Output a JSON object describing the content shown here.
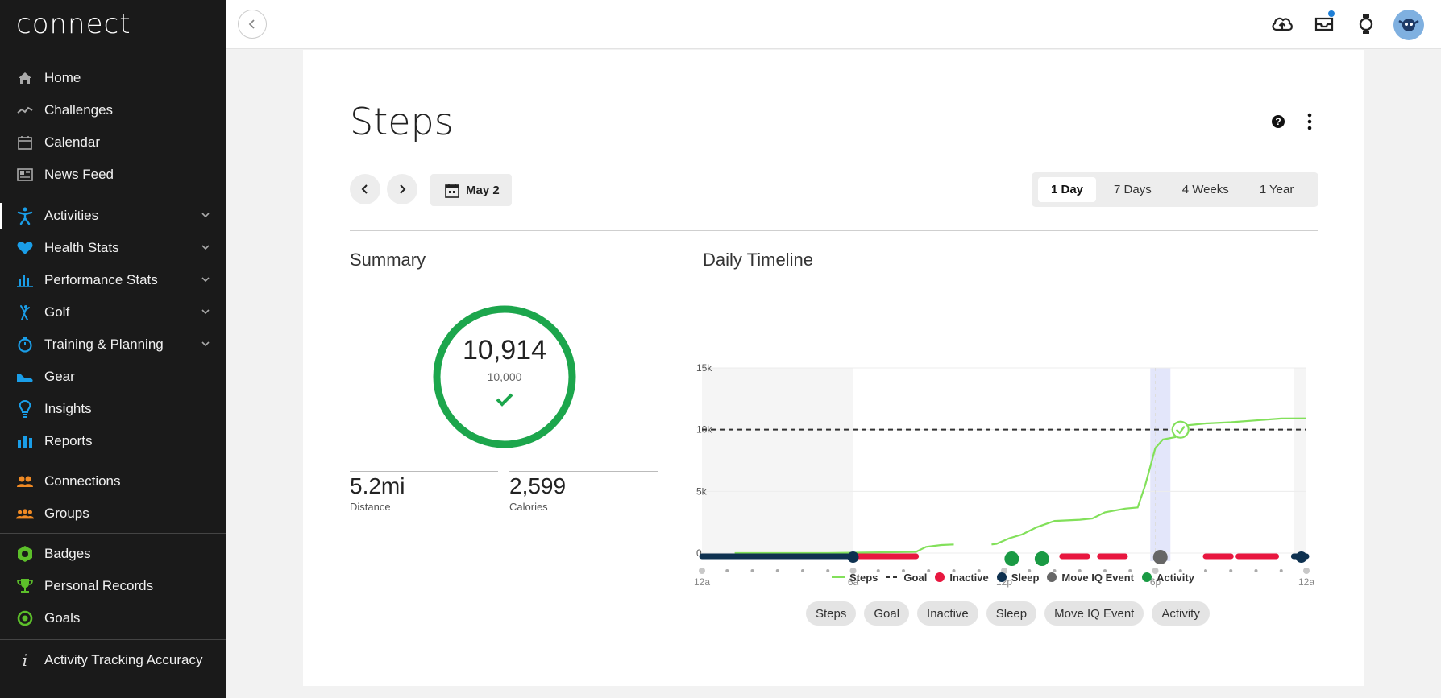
{
  "app": {
    "logo": "connect"
  },
  "sidebar": {
    "items": [
      {
        "label": "Home",
        "icon": "home-icon"
      },
      {
        "label": "Challenges",
        "icon": "challenges-icon"
      },
      {
        "label": "Calendar",
        "icon": "calendar-icon"
      },
      {
        "label": "News Feed",
        "icon": "newsfeed-icon"
      },
      {
        "label": "Activities",
        "icon": "activities-icon",
        "expandable": true
      },
      {
        "label": "Health Stats",
        "icon": "heart-icon",
        "expandable": true
      },
      {
        "label": "Performance Stats",
        "icon": "bar-chart-icon",
        "expandable": true
      },
      {
        "label": "Golf",
        "icon": "golf-icon",
        "expandable": true
      },
      {
        "label": "Training & Planning",
        "icon": "stopwatch-icon",
        "expandable": true
      },
      {
        "label": "Gear",
        "icon": "shoe-icon"
      },
      {
        "label": "Insights",
        "icon": "lightbulb-icon"
      },
      {
        "label": "Reports",
        "icon": "reports-icon"
      },
      {
        "label": "Connections",
        "icon": "connections-icon"
      },
      {
        "label": "Groups",
        "icon": "groups-icon"
      },
      {
        "label": "Badges",
        "icon": "badge-icon"
      },
      {
        "label": "Personal Records",
        "icon": "trophy-icon"
      },
      {
        "label": "Goals",
        "icon": "target-icon"
      },
      {
        "label": "Activity Tracking Accuracy",
        "icon": "info-icon"
      }
    ],
    "accent_colors": {
      "activities": "#1a9ee8",
      "social": "#f08a24",
      "achievements": "#5cbf2a"
    }
  },
  "header": {
    "icons": [
      "back-icon",
      "upload-cloud-icon",
      "inbox-icon",
      "watch-icon",
      "avatar"
    ],
    "notification_color": "#1f7fd6"
  },
  "page": {
    "title": "Steps",
    "date_label": "May 2",
    "ranges": [
      "1 Day",
      "7 Days",
      "4 Weeks",
      "1 Year"
    ],
    "selected_range": "1 Day"
  },
  "summary": {
    "title": "Summary",
    "steps": "10,914",
    "goal": "10,000",
    "progress": 1.0,
    "ring_color": "#1ca64c",
    "distance_value": "5.2mi",
    "distance_label": "Distance",
    "calories_value": "2,599",
    "calories_label": "Calories"
  },
  "timeline": {
    "title": "Daily Timeline",
    "legend": [
      "Steps",
      "Goal",
      "Inactive",
      "Sleep",
      "Move IQ Event",
      "Activity"
    ],
    "filters": [
      "Steps",
      "Goal",
      "Inactive",
      "Sleep",
      "Move IQ Event",
      "Activity"
    ],
    "colors": {
      "steps": "#82e05a",
      "goal": "#333333",
      "inactive": "#e8173f",
      "sleep": "#0e3150",
      "moveiq": "#666666",
      "activity": "#1a9a44",
      "highlight": "#e3e6fa"
    }
  },
  "chart_data": {
    "type": "line",
    "title": "Daily Timeline",
    "x_ticks": [
      "12a",
      "6a",
      "12p",
      "6p",
      "12a"
    ],
    "y_ticks": [
      "0",
      "5k",
      "10k",
      "15k"
    ],
    "ylim": [
      0,
      15000
    ],
    "goal": 10000,
    "series": [
      {
        "name": "Steps",
        "points": [
          [
            1.3,
            0
          ],
          [
            5.0,
            0
          ],
          [
            8.5,
            100
          ],
          [
            8.9,
            500
          ],
          [
            9.5,
            650
          ],
          [
            10.0,
            700
          ],
          [
            11.5,
            700
          ],
          [
            11.7,
            750
          ],
          [
            12.2,
            1200
          ],
          [
            12.7,
            1500
          ],
          [
            13.3,
            2100
          ],
          [
            14.0,
            2600
          ],
          [
            15.0,
            2700
          ],
          [
            15.5,
            2800
          ],
          [
            16.0,
            3300
          ],
          [
            16.8,
            3600
          ],
          [
            17.3,
            3700
          ],
          [
            17.6,
            5500
          ],
          [
            18.0,
            8500
          ],
          [
            18.3,
            9200
          ],
          [
            18.8,
            9400
          ],
          [
            19.0,
            10300
          ],
          [
            20.0,
            10500
          ],
          [
            21.0,
            10600
          ],
          [
            22.0,
            10750
          ],
          [
            23.0,
            10900
          ],
          [
            24.0,
            10914
          ]
        ]
      }
    ],
    "sleep": [
      [
        0,
        6.0
      ],
      [
        23.5,
        24
      ]
    ],
    "inactive": [
      [
        6.2,
        8.5
      ],
      [
        14.3,
        15.3
      ],
      [
        15.8,
        16.8
      ],
      [
        20.0,
        21.0
      ],
      [
        21.3,
        22.8
      ]
    ],
    "activity": [
      12.3,
      13.5
    ],
    "move_iq": [
      18.2
    ],
    "highlight": [
      17.8,
      18.6
    ],
    "shaded_until": 6.0
  }
}
